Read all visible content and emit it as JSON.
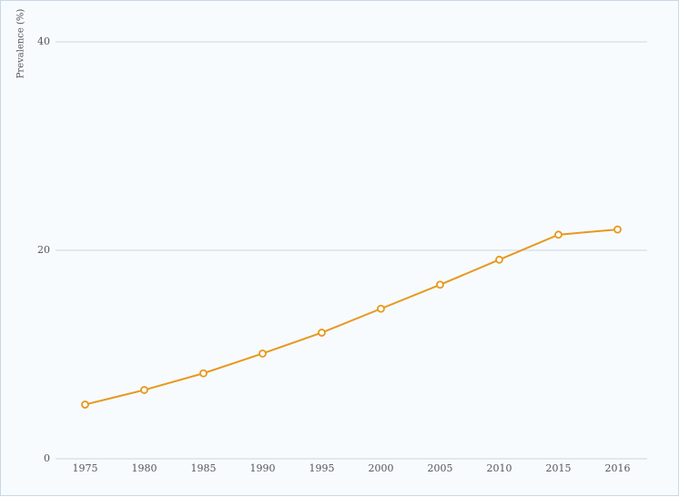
{
  "chart_data": {
    "type": "line",
    "y_label": "Prevalence (%)",
    "categories": [
      "1975",
      "1980",
      "1985",
      "1990",
      "1995",
      "2000",
      "2005",
      "2010",
      "2015",
      "2016"
    ],
    "series": [
      {
        "color": "#e8981e",
        "values": [
          5.2,
          6.6,
          8.2,
          10.1,
          12.1,
          14.4,
          16.7,
          19.1,
          21.5,
          22.0
        ]
      }
    ],
    "ylim": [
      0,
      40
    ],
    "yticks": [
      0,
      20,
      40
    ],
    "grid": true
  }
}
